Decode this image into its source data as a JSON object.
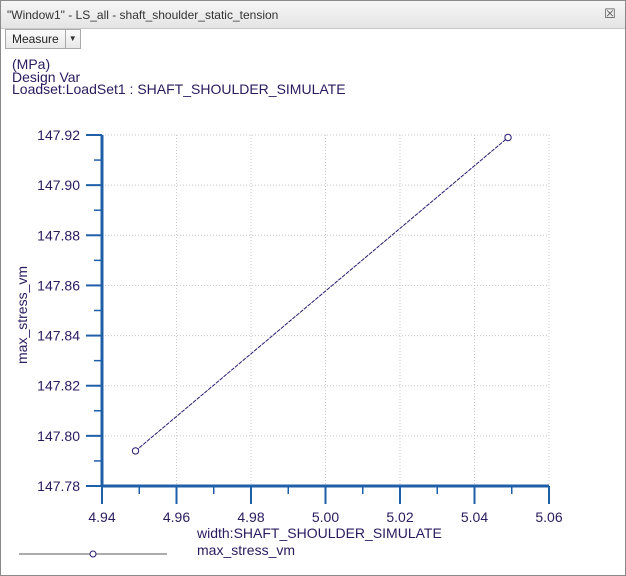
{
  "window": {
    "title": "\"Window1\" - LS_all - shaft_shoulder_static_tension",
    "close_icon": "close-x-icon"
  },
  "toolbar": {
    "measure_label": "Measure",
    "dropdown_icon": "chevron-down-icon"
  },
  "header": {
    "units": "(MPa)",
    "design_var": "Design Var",
    "loadset": "Loadset:LoadSet1 :  SHAFT_SHOULDER_SIMULATE"
  },
  "chart_data": {
    "type": "line",
    "xlabel": "width:SHAFT_SHOULDER_SIMULATE",
    "ylabel": "max_stress_vm",
    "xlim": [
      4.94,
      5.06
    ],
    "ylim": [
      147.78,
      147.92
    ],
    "x_ticks": [
      "4.94",
      "4.96",
      "4.98",
      "5.00",
      "5.02",
      "5.04",
      "5.06"
    ],
    "y_ticks": [
      "147.78",
      "147.80",
      "147.82",
      "147.84",
      "147.86",
      "147.88",
      "147.90",
      "147.92"
    ],
    "grid": true,
    "series": [
      {
        "name": "max_stress_vm",
        "color": "#2a1a6e",
        "x": [
          4.949,
          5.049
        ],
        "y": [
          147.794,
          147.919
        ]
      }
    ],
    "legend": {
      "position": "bottom-left"
    },
    "axis_color": "#1f5fa8"
  }
}
